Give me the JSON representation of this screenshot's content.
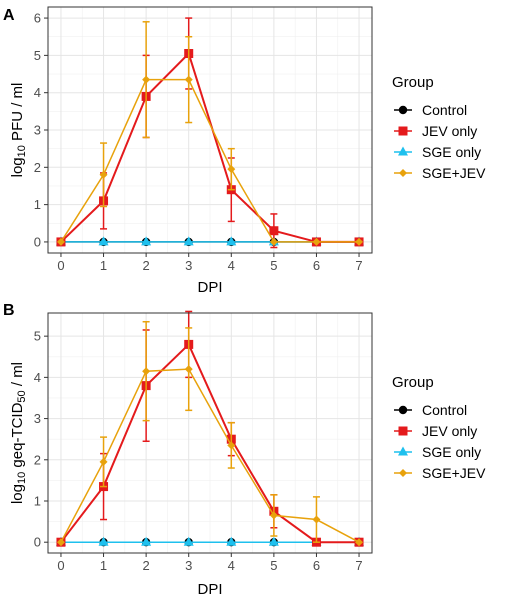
{
  "chart_data": [
    {
      "panel": "A",
      "type": "line",
      "xlabel": "DPI",
      "ylabel_main": "log",
      "ylabel_sub": "10",
      "ylabel_rest": " PFU / ml",
      "xlim": [
        0,
        7
      ],
      "ylim": [
        0,
        6
      ],
      "x_ticks": [
        0,
        1,
        2,
        3,
        4,
        5,
        6,
        7
      ],
      "y_ticks": [
        0,
        1,
        2,
        3,
        4,
        5,
        6
      ],
      "grid": true,
      "legend_title": "Group",
      "legend_position": "right",
      "series": [
        {
          "name": "Control",
          "color": "#000000",
          "marker": "circle",
          "x": [
            0,
            1,
            2,
            3,
            4,
            5,
            6,
            7
          ],
          "y": [
            0,
            0,
            0,
            0,
            0,
            0,
            0,
            0
          ]
        },
        {
          "name": "JEV only",
          "color": "#e41a1c",
          "marker": "square",
          "x": [
            0,
            1,
            2,
            3,
            4,
            5,
            6,
            7
          ],
          "y": [
            0,
            1.1,
            3.9,
            5.05,
            1.4,
            0.3,
            0,
            0
          ],
          "err": [
            0,
            0.75,
            1.1,
            0.95,
            0.85,
            0.45,
            0,
            0
          ]
        },
        {
          "name": "SGE only",
          "color": "#1ec0ee",
          "marker": "triangle",
          "x": [
            0,
            1,
            2,
            3,
            4,
            5,
            6,
            7
          ],
          "y": [
            0,
            0,
            0,
            0,
            0,
            0,
            0,
            0
          ]
        },
        {
          "name": "SGE+JEV",
          "color": "#e8a20c",
          "marker": "diamond",
          "x": [
            0,
            1,
            2,
            3,
            4,
            5,
            6,
            7
          ],
          "y": [
            0,
            1.8,
            4.35,
            4.35,
            1.95,
            0,
            0,
            0
          ],
          "err": [
            0,
            0.85,
            1.55,
            1.15,
            0.55,
            0,
            0,
            0
          ]
        }
      ]
    },
    {
      "panel": "B",
      "type": "line",
      "xlabel": "DPI",
      "ylabel_main": "log",
      "ylabel_sub": "10",
      "ylabel_rest": " geq-TCID",
      "ylabel_sub2": "50",
      "ylabel_rest2": " / ml",
      "xlim": [
        0,
        7
      ],
      "ylim": [
        0,
        5.3
      ],
      "x_ticks": [
        0,
        1,
        2,
        3,
        4,
        5,
        6,
        7
      ],
      "y_ticks": [
        0,
        1,
        2,
        3,
        4,
        5
      ],
      "grid": true,
      "legend_title": "Group",
      "legend_position": "right",
      "series": [
        {
          "name": "Control",
          "color": "#000000",
          "marker": "circle",
          "x": [
            0,
            1,
            2,
            3,
            4,
            5,
            6,
            7
          ],
          "y": [
            0,
            0,
            0,
            0,
            0,
            0,
            0,
            0
          ]
        },
        {
          "name": "JEV only",
          "color": "#e41a1c",
          "marker": "square",
          "x": [
            0,
            1,
            2,
            3,
            4,
            5,
            6,
            7
          ],
          "y": [
            0,
            1.35,
            3.8,
            4.8,
            2.5,
            0.75,
            0,
            0
          ],
          "err": [
            0,
            0.8,
            1.35,
            0.8,
            0.4,
            0.4,
            0,
            0
          ]
        },
        {
          "name": "SGE only",
          "color": "#1ec0ee",
          "marker": "triangle",
          "x": [
            0,
            1,
            2,
            3,
            4,
            5,
            6,
            7
          ],
          "y": [
            0,
            0,
            0,
            0,
            0,
            0,
            0,
            0
          ]
        },
        {
          "name": "SGE+JEV",
          "color": "#e8a20c",
          "marker": "diamond",
          "x": [
            0,
            1,
            2,
            3,
            4,
            5,
            6,
            7
          ],
          "y": [
            0,
            1.95,
            4.15,
            4.2,
            2.35,
            0.65,
            0.55,
            0
          ],
          "err": [
            0,
            0.6,
            1.2,
            1.0,
            0.55,
            0.5,
            0.55,
            0
          ]
        }
      ]
    }
  ]
}
